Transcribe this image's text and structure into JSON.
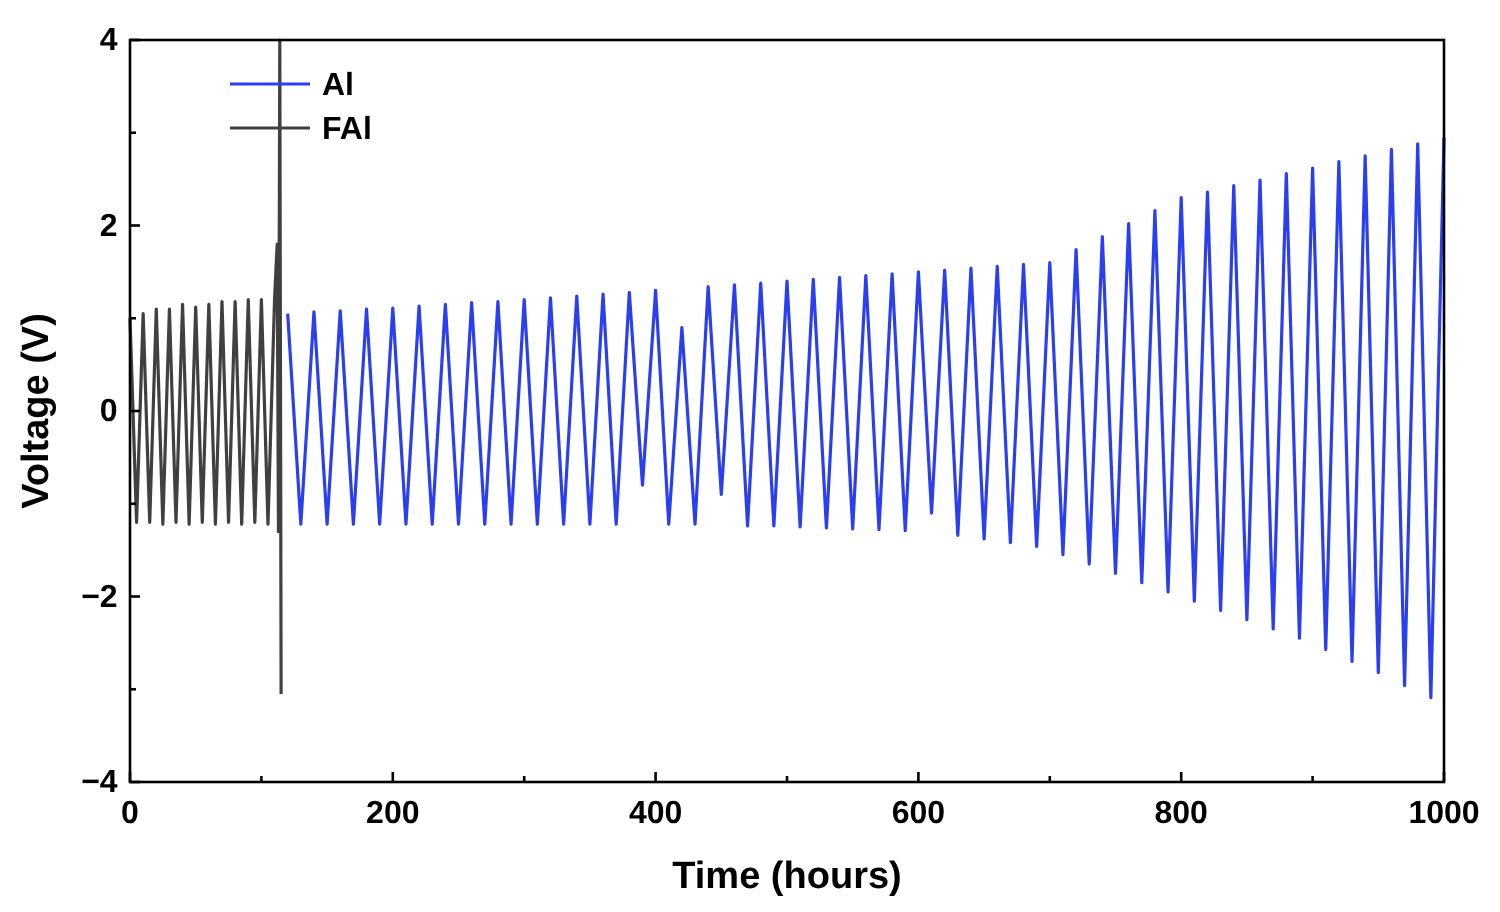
{
  "chart_data": {
    "type": "line",
    "xlabel": "Time (hours)",
    "ylabel": "Voltage (V)",
    "xlim": [
      0,
      1000
    ],
    "ylim": [
      -4,
      4
    ],
    "xticks": [
      0,
      {
        "value": 100,
        "label": null
      },
      200,
      {
        "value": 300,
        "label": null
      },
      400,
      {
        "value": 500,
        "label": null
      },
      600,
      {
        "value": 700,
        "label": null
      },
      800,
      {
        "value": 900,
        "label": null
      },
      1000
    ],
    "yticks": [
      {
        "value": -4,
        "label": "−4"
      },
      {
        "value": -3,
        "label": null
      },
      {
        "value": -2,
        "label": "−2"
      },
      {
        "value": -1,
        "label": null
      },
      0,
      {
        "value": 1,
        "label": null
      },
      2,
      {
        "value": 3,
        "label": null
      },
      4
    ],
    "grid": false,
    "legend": "top left",
    "marker": "none",
    "line_style": "solid",
    "series": [
      {
        "name": "Al",
        "color": "#2a3ff2",
        "x": [
          120,
          130,
          140,
          150,
          160,
          170,
          180,
          190,
          200,
          210,
          220,
          230,
          240,
          250,
          260,
          270,
          280,
          290,
          300,
          310,
          320,
          330,
          340,
          350,
          360,
          370,
          380,
          390,
          400,
          410,
          420,
          430,
          440,
          450,
          460,
          470,
          480,
          490,
          500,
          510,
          520,
          530,
          540,
          550,
          560,
          570,
          580,
          590,
          600,
          610,
          620,
          630,
          640,
          650,
          660,
          670,
          680,
          690,
          700,
          710,
          720,
          730,
          740,
          750,
          760,
          770,
          780,
          790,
          800,
          810,
          820,
          830,
          840,
          850,
          860,
          870,
          880,
          890,
          900,
          910,
          920,
          930,
          940,
          950,
          960,
          970,
          980,
          990,
          1000
        ],
        "values": [
          1.05,
          -1.22,
          1.07,
          -1.22,
          1.08,
          -1.22,
          1.1,
          -1.22,
          1.11,
          -1.22,
          1.13,
          -1.22,
          1.15,
          -1.22,
          1.17,
          -1.22,
          1.18,
          -1.22,
          1.2,
          -1.22,
          1.22,
          -1.22,
          1.24,
          -1.22,
          1.26,
          -1.22,
          1.28,
          -0.8,
          1.3,
          -1.22,
          0.9,
          -1.22,
          1.34,
          -0.9,
          1.36,
          -1.24,
          1.38,
          -1.24,
          1.4,
          -1.25,
          1.42,
          -1.26,
          1.44,
          -1.27,
          1.46,
          -1.28,
          1.48,
          -1.29,
          1.5,
          -1.1,
          1.52,
          -1.34,
          1.54,
          -1.38,
          1.56,
          -1.42,
          1.58,
          -1.46,
          1.6,
          -1.55,
          1.74,
          -1.65,
          1.88,
          -1.75,
          2.02,
          -1.85,
          2.16,
          -1.95,
          2.3,
          -2.05,
          2.36,
          -2.15,
          2.43,
          -2.25,
          2.49,
          -2.35,
          2.56,
          -2.45,
          2.62,
          -2.57,
          2.69,
          -2.7,
          2.75,
          -2.82,
          2.82,
          -2.96,
          2.88,
          -3.09,
          2.95
        ]
      },
      {
        "name": "FAl",
        "color": "#404040",
        "x": [
          0,
          5,
          10,
          15,
          20,
          25,
          30,
          35,
          40,
          45,
          50,
          55,
          60,
          65,
          70,
          75,
          80,
          85,
          90,
          95,
          100,
          105,
          110,
          112,
          113,
          114,
          115
        ],
        "values": [
          1.0,
          -1.2,
          1.05,
          -1.2,
          1.1,
          -1.22,
          1.1,
          -1.2,
          1.15,
          -1.22,
          1.12,
          -1.2,
          1.15,
          -1.22,
          1.18,
          -1.2,
          1.18,
          -1.22,
          1.2,
          -1.2,
          1.2,
          -1.22,
          1.2,
          1.8,
          -1.3,
          4,
          -3.05
        ]
      }
    ]
  }
}
